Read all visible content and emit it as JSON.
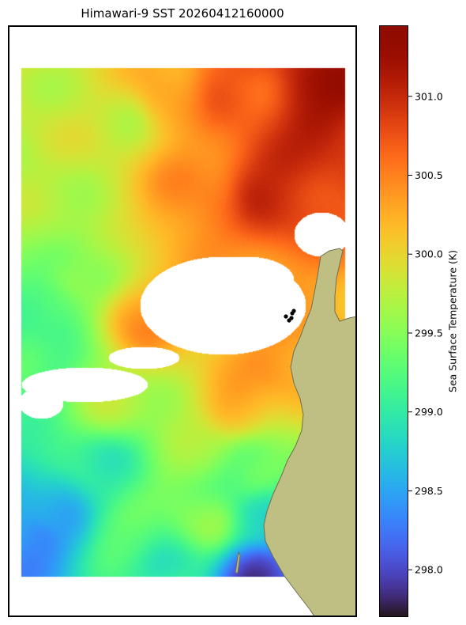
{
  "chart_data": {
    "type": "heatmap",
    "title": "Himawari-9 SST 20260412160000",
    "colorbar": {
      "label": "Sea Surface Temperature (K)",
      "range": [
        297.7,
        301.45
      ],
      "ticks": [
        298.0,
        298.5,
        299.0,
        299.5,
        300.0,
        300.5,
        301.0
      ],
      "tick_labels": [
        "298.0",
        "298.5",
        "299.0",
        "299.5",
        "300.0",
        "300.5",
        "301.0"
      ],
      "colormap": "turbo"
    },
    "field_summary": {
      "northeast": 301.2,
      "north_central": 300.5,
      "northwest": 299.8,
      "central_west": 299.2,
      "south_central": 299.6,
      "southwest": 298.3,
      "south_east": 297.9
    },
    "grid": false,
    "legend": "none",
    "colors": {
      "land": "#bfbf83",
      "coastline": "#6e6e52",
      "missing_data": "#ffffff",
      "point_markers": "#000000"
    }
  }
}
